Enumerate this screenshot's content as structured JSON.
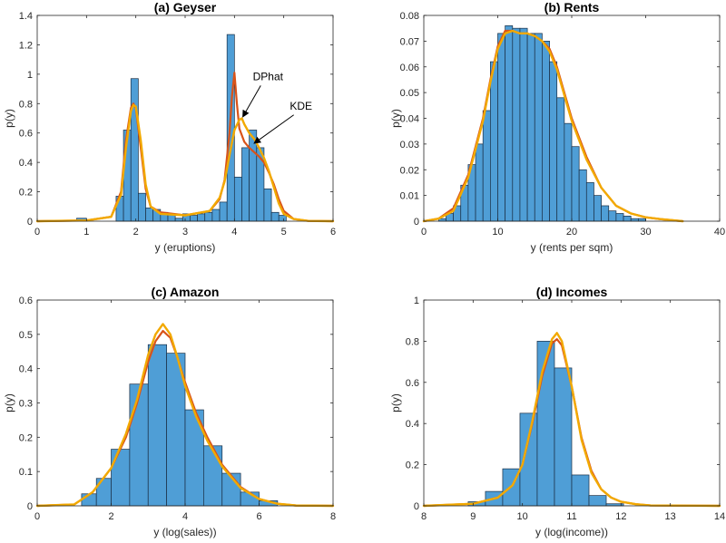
{
  "colors": {
    "bar_fill": "#4f9ed6",
    "bar_edge": "#1a2e44",
    "dphat": "#d95319",
    "kde": "#f2a900",
    "axis": "#262626"
  },
  "chart_data": [
    {
      "type": "bar",
      "title": "(a) Geyser",
      "xlabel": "y (eruptions)",
      "ylabel": "p(y)",
      "xlim": [
        0,
        6
      ],
      "ylim": [
        0,
        1.4
      ],
      "xticks": [
        0,
        1,
        2,
        3,
        4,
        5,
        6
      ],
      "yticks": [
        0,
        0.2,
        0.4,
        0.6,
        0.8,
        1,
        1.2,
        1.4
      ],
      "bin_edges": [
        0.8,
        1.0,
        1.6,
        1.75,
        1.9,
        2.05,
        2.2,
        2.35,
        2.5,
        2.65,
        2.8,
        2.95,
        3.1,
        3.25,
        3.4,
        3.55,
        3.7,
        3.85,
        4.0,
        4.15,
        4.3,
        4.45,
        4.6,
        4.75,
        4.9,
        5.05,
        5.2
      ],
      "bin_heights": [
        0.02,
        0.0,
        0.17,
        0.62,
        0.97,
        0.19,
        0.09,
        0.08,
        0.06,
        0.05,
        0.02,
        0.05,
        0.04,
        0.05,
        0.06,
        0.08,
        0.13,
        1.27,
        0.3,
        0.5,
        0.62,
        0.5,
        0.22,
        0.06,
        0.04,
        0.0
      ],
      "series": [
        {
          "name": "DPhat",
          "x": [
            0,
            1.0,
            1.5,
            1.7,
            1.8,
            1.9,
            1.95,
            2.0,
            2.1,
            2.2,
            2.3,
            2.5,
            3.0,
            3.5,
            3.7,
            3.8,
            3.9,
            3.95,
            4.0,
            4.05,
            4.1,
            4.2,
            4.3,
            4.4,
            4.5,
            4.6,
            4.7,
            4.8,
            4.9,
            5.0,
            5.2,
            5.5,
            6.0
          ],
          "y": [
            0,
            0.005,
            0.03,
            0.2,
            0.55,
            0.77,
            0.8,
            0.77,
            0.5,
            0.22,
            0.1,
            0.06,
            0.04,
            0.07,
            0.15,
            0.28,
            0.6,
            0.85,
            1.01,
            0.8,
            0.63,
            0.54,
            0.5,
            0.47,
            0.44,
            0.4,
            0.33,
            0.25,
            0.15,
            0.07,
            0.015,
            0.002,
            0
          ]
        },
        {
          "name": "KDE",
          "x": [
            0,
            1.0,
            1.5,
            1.7,
            1.8,
            1.9,
            1.95,
            2.0,
            2.1,
            2.2,
            2.3,
            2.5,
            3.0,
            3.5,
            3.7,
            3.8,
            3.9,
            4.0,
            4.1,
            4.15,
            4.2,
            4.3,
            4.4,
            4.5,
            4.6,
            4.7,
            4.8,
            4.9,
            5.0,
            5.2,
            5.5,
            6.0
          ],
          "y": [
            0,
            0.005,
            0.03,
            0.18,
            0.5,
            0.75,
            0.79,
            0.78,
            0.55,
            0.25,
            0.1,
            0.05,
            0.04,
            0.07,
            0.16,
            0.27,
            0.45,
            0.62,
            0.69,
            0.7,
            0.66,
            0.6,
            0.56,
            0.5,
            0.43,
            0.34,
            0.23,
            0.12,
            0.05,
            0.015,
            0.002,
            0
          ]
        }
      ],
      "annotations": [
        {
          "text": "DPhat",
          "x": 4.68,
          "y": 0.96,
          "arrow_to": [
            4.17,
            0.71
          ]
        },
        {
          "text": "KDE",
          "x": 5.35,
          "y": 0.76,
          "arrow_to": [
            4.4,
            0.53
          ]
        }
      ]
    },
    {
      "type": "bar",
      "title": "(b) Rents",
      "xlabel": "y (rents per sqm)",
      "ylabel": "p(y)",
      "xlim": [
        0,
        40
      ],
      "ylim": [
        0,
        0.08
      ],
      "xticks": [
        0,
        10,
        20,
        30,
        40
      ],
      "yticks": [
        0,
        0.01,
        0.02,
        0.03,
        0.04,
        0.05,
        0.06,
        0.07,
        0.08
      ],
      "bin_edges": [
        2,
        3,
        4,
        5,
        6,
        7,
        8,
        9,
        10,
        11,
        12,
        13,
        14,
        15,
        16,
        17,
        18,
        19,
        20,
        21,
        22,
        23,
        24,
        25,
        26,
        27,
        28,
        29,
        30
      ],
      "bin_heights": [
        0.001,
        0.003,
        0.006,
        0.014,
        0.022,
        0.03,
        0.043,
        0.062,
        0.073,
        0.076,
        0.075,
        0.075,
        0.073,
        0.073,
        0.07,
        0.062,
        0.048,
        0.038,
        0.029,
        0.02,
        0.015,
        0.01,
        0.006,
        0.004,
        0.003,
        0.002,
        0.001,
        0.001
      ],
      "series": [
        {
          "name": "DPhat",
          "x": [
            0,
            2,
            4,
            6,
            8,
            9,
            10,
            11,
            12,
            13,
            14,
            15,
            16,
            17,
            18,
            19,
            20,
            22,
            24,
            26,
            28,
            30,
            32,
            35
          ],
          "y": [
            0,
            0.001,
            0.005,
            0.018,
            0.04,
            0.055,
            0.068,
            0.074,
            0.074,
            0.073,
            0.073,
            0.072,
            0.07,
            0.067,
            0.06,
            0.05,
            0.04,
            0.025,
            0.013,
            0.006,
            0.003,
            0.0015,
            0.0008,
            0
          ]
        },
        {
          "name": "KDE",
          "x": [
            0,
            2,
            4,
            6,
            8,
            9,
            10,
            11,
            12,
            13,
            14,
            15,
            16,
            17,
            18,
            19,
            20,
            22,
            24,
            26,
            28,
            30,
            32,
            35
          ],
          "y": [
            0,
            0.001,
            0.004,
            0.017,
            0.039,
            0.054,
            0.067,
            0.073,
            0.074,
            0.073,
            0.073,
            0.072,
            0.07,
            0.066,
            0.059,
            0.049,
            0.039,
            0.024,
            0.013,
            0.006,
            0.003,
            0.0015,
            0.0008,
            0
          ]
        }
      ]
    },
    {
      "type": "bar",
      "title": "(c) Amazon",
      "xlabel": "y (log(sales))",
      "ylabel": "p(y)",
      "xlim": [
        0,
        8
      ],
      "ylim": [
        0,
        0.6
      ],
      "xticks": [
        0,
        2,
        4,
        6,
        8
      ],
      "yticks": [
        0,
        0.1,
        0.2,
        0.3,
        0.4,
        0.5,
        0.6
      ],
      "bin_edges": [
        1.2,
        1.6,
        2.0,
        2.5,
        3.0,
        3.5,
        4.0,
        4.5,
        5.0,
        5.5,
        6.0,
        6.5
      ],
      "bin_heights": [
        0.035,
        0.08,
        0.165,
        0.355,
        0.47,
        0.445,
        0.28,
        0.175,
        0.095,
        0.04,
        0.015
      ],
      "series": [
        {
          "name": "DPhat",
          "x": [
            0,
            1.0,
            1.5,
            2.0,
            2.4,
            2.7,
            3.0,
            3.2,
            3.4,
            3.6,
            3.8,
            4.0,
            4.3,
            4.6,
            5.0,
            5.5,
            6.0,
            6.5,
            7.0,
            8.0
          ],
          "y": [
            0,
            0.004,
            0.04,
            0.11,
            0.2,
            0.3,
            0.42,
            0.48,
            0.51,
            0.49,
            0.43,
            0.36,
            0.27,
            0.2,
            0.12,
            0.055,
            0.02,
            0.006,
            0.001,
            0
          ]
        },
        {
          "name": "KDE",
          "x": [
            0,
            1.0,
            1.5,
            2.0,
            2.4,
            2.7,
            3.0,
            3.2,
            3.4,
            3.6,
            3.8,
            4.0,
            4.3,
            4.6,
            5.0,
            5.5,
            6.0,
            6.5,
            7.0,
            8.0
          ],
          "y": [
            0,
            0.004,
            0.04,
            0.11,
            0.21,
            0.31,
            0.44,
            0.5,
            0.53,
            0.5,
            0.43,
            0.35,
            0.26,
            0.19,
            0.115,
            0.052,
            0.02,
            0.006,
            0.001,
            0
          ]
        }
      ]
    },
    {
      "type": "bar",
      "title": "(d) Incomes",
      "xlabel": "y (log(income))",
      "ylabel": "p(y)",
      "xlim": [
        8,
        14
      ],
      "ylim": [
        0,
        1
      ],
      "xticks": [
        8,
        9,
        10,
        11,
        12,
        13,
        14
      ],
      "yticks": [
        0,
        0.2,
        0.4,
        0.6,
        0.8,
        1
      ],
      "bin_edges": [
        8.9,
        9.25,
        9.6,
        9.95,
        10.3,
        10.65,
        11.0,
        11.35,
        11.7,
        12.05
      ],
      "bin_heights": [
        0.02,
        0.07,
        0.18,
        0.45,
        0.8,
        0.67,
        0.15,
        0.05,
        0.01
      ],
      "series": [
        {
          "name": "DPhat",
          "x": [
            8.0,
            9.0,
            9.5,
            9.8,
            10.0,
            10.2,
            10.4,
            10.6,
            10.7,
            10.8,
            11.0,
            11.2,
            11.4,
            11.6,
            11.8,
            12.0,
            12.3,
            12.6,
            14.0
          ],
          "y": [
            0,
            0.01,
            0.04,
            0.1,
            0.2,
            0.4,
            0.63,
            0.79,
            0.81,
            0.78,
            0.58,
            0.33,
            0.17,
            0.08,
            0.04,
            0.02,
            0.008,
            0.002,
            0
          ]
        },
        {
          "name": "KDE",
          "x": [
            8.0,
            9.0,
            9.5,
            9.8,
            10.0,
            10.2,
            10.4,
            10.6,
            10.7,
            10.8,
            11.0,
            11.2,
            11.4,
            11.6,
            11.8,
            12.0,
            12.3,
            12.6,
            14.0
          ],
          "y": [
            0,
            0.01,
            0.04,
            0.1,
            0.2,
            0.41,
            0.65,
            0.81,
            0.84,
            0.8,
            0.58,
            0.32,
            0.16,
            0.08,
            0.04,
            0.02,
            0.008,
            0.002,
            0
          ]
        }
      ]
    }
  ]
}
